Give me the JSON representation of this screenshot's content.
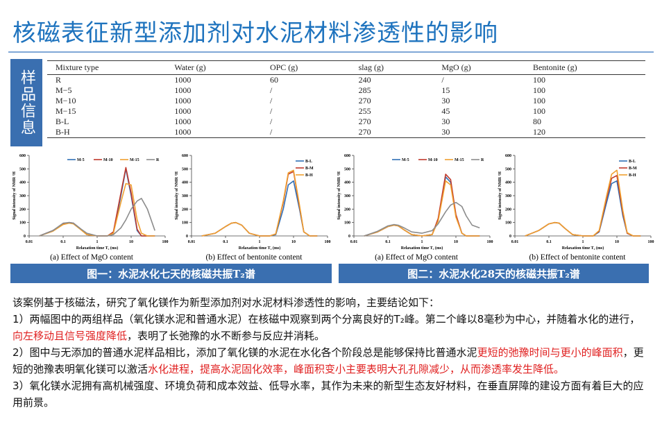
{
  "title": "核磁表征新型添加剂对水泥材料渗透性的影响",
  "side_label": "样品信息",
  "table": {
    "header": [
      "Mixture type",
      "Water (g)",
      "OPC (g)",
      "slag (g)",
      "MgO (g)",
      "Bentonite (g)"
    ],
    "rows": [
      [
        "R",
        "1000",
        "60",
        "240",
        "/",
        "100"
      ],
      [
        "M−5",
        "1000",
        "/",
        "285",
        "15",
        "100"
      ],
      [
        "M−10",
        "1000",
        "/",
        "270",
        "30",
        "100"
      ],
      [
        "M−15",
        "1000",
        "/",
        "255",
        "45",
        "100"
      ],
      [
        "B-L",
        "1000",
        "/",
        "270",
        "30",
        "80"
      ],
      [
        "B-H",
        "1000",
        "/",
        "270",
        "30",
        "120"
      ]
    ]
  },
  "chart_data": [
    {
      "type": "line",
      "caption": "(a) Effect of MgO content",
      "xlabel": "Relaxation time T₂ (ms)",
      "ylabel": "Signal intensity of NMR ¹H",
      "log_x": true,
      "xlim": [
        0.01,
        100
      ],
      "xticks": [
        0.01,
        0.1,
        1,
        10,
        100
      ],
      "ylim": [
        0,
        600
      ],
      "yticks": [
        0,
        100,
        200,
        300,
        400,
        500,
        600
      ],
      "legend": "top",
      "x": [
        0.02,
        0.05,
        0.1,
        0.15,
        0.2,
        0.3,
        0.5,
        1,
        2,
        3,
        5,
        7,
        10,
        15,
        20,
        30,
        50
      ],
      "series": [
        {
          "name": "M-5",
          "color": "#2f6fb5",
          "values": [
            0,
            40,
            90,
            100,
            95,
            60,
            10,
            0,
            0,
            20,
            300,
            500,
            300,
            40,
            0,
            0,
            0
          ]
        },
        {
          "name": "M-10",
          "color": "#c0392b",
          "values": [
            0,
            40,
            90,
            100,
            95,
            60,
            10,
            0,
            0,
            30,
            320,
            510,
            320,
            50,
            0,
            0,
            0
          ]
        },
        {
          "name": "M-15",
          "color": "#f0a030",
          "values": [
            0,
            35,
            85,
            95,
            90,
            55,
            10,
            0,
            0,
            20,
            250,
            390,
            380,
            120,
            20,
            0,
            0
          ]
        },
        {
          "name": "R",
          "color": "#8c8c8c",
          "values": [
            0,
            40,
            95,
            100,
            95,
            60,
            20,
            0,
            0,
            10,
            60,
            120,
            200,
            260,
            280,
            200,
            40
          ]
        }
      ]
    },
    {
      "type": "line",
      "caption": "(b) Effect of bentonite content",
      "xlabel": "Relaxation time T₂ (ms)",
      "ylabel": "Signal intensity of NMR ¹H",
      "log_x": true,
      "xlim": [
        0.01,
        100
      ],
      "xticks": [
        0.01,
        0.1,
        1,
        10,
        100
      ],
      "ylim": [
        0,
        600
      ],
      "yticks": [
        0,
        100,
        200,
        300,
        400,
        500,
        600
      ],
      "legend": "right",
      "x": [
        0.02,
        0.05,
        0.1,
        0.15,
        0.2,
        0.3,
        0.5,
        1,
        2,
        3,
        5,
        7,
        10,
        15,
        20,
        30,
        50
      ],
      "series": [
        {
          "name": "B-L",
          "color": "#2f6fb5",
          "values": [
            0,
            20,
            70,
            95,
            100,
            80,
            20,
            0,
            0,
            10,
            200,
            380,
            410,
            200,
            30,
            0,
            0
          ]
        },
        {
          "name": "B-M",
          "color": "#c0392b",
          "values": [
            0,
            20,
            70,
            95,
            100,
            80,
            20,
            0,
            0,
            15,
            250,
            460,
            480,
            220,
            30,
            0,
            0
          ]
        },
        {
          "name": "B-H",
          "color": "#f0a030",
          "values": [
            0,
            20,
            70,
            95,
            100,
            80,
            20,
            0,
            0,
            15,
            260,
            470,
            490,
            230,
            30,
            0,
            0
          ]
        }
      ]
    },
    {
      "type": "line",
      "caption": "(a) Effect of MgO content",
      "xlabel": "Relaxation time T₂ (ms)",
      "ylabel": "Signal intensity of NMR ¹H",
      "log_x": true,
      "xlim": [
        0.01,
        100
      ],
      "xticks": [
        0.01,
        0.1,
        1,
        10,
        100
      ],
      "ylim": [
        0,
        600
      ],
      "yticks": [
        0,
        100,
        200,
        300,
        400,
        500,
        600
      ],
      "legend": "top",
      "x": [
        0.02,
        0.05,
        0.1,
        0.15,
        0.2,
        0.3,
        0.5,
        1,
        2,
        3,
        5,
        7,
        10,
        15,
        20,
        30,
        50
      ],
      "series": [
        {
          "name": "M-5",
          "color": "#2f6fb5",
          "values": [
            0,
            30,
            70,
            80,
            75,
            45,
            10,
            0,
            10,
            120,
            440,
            400,
            150,
            20,
            0,
            0,
            0
          ]
        },
        {
          "name": "M-10",
          "color": "#c0392b",
          "values": [
            0,
            30,
            70,
            80,
            75,
            45,
            10,
            0,
            10,
            130,
            460,
            420,
            160,
            20,
            0,
            0,
            0
          ]
        },
        {
          "name": "M-15",
          "color": "#f0a030",
          "values": [
            0,
            30,
            70,
            80,
            75,
            45,
            10,
            0,
            10,
            110,
            410,
            380,
            140,
            20,
            0,
            0,
            0
          ]
        },
        {
          "name": "R",
          "color": "#8c8c8c",
          "values": [
            0,
            35,
            75,
            85,
            80,
            60,
            30,
            20,
            40,
            90,
            180,
            230,
            250,
            220,
            150,
            80,
            60
          ]
        }
      ]
    },
    {
      "type": "line",
      "caption": "(b) Effect of bentonite content",
      "xlabel": "Relaxation time T₂ (ms)",
      "ylabel": "Signal intensity of NMR ¹H",
      "log_x": true,
      "xlim": [
        0.01,
        100
      ],
      "xticks": [
        0.01,
        0.1,
        1,
        10,
        100
      ],
      "ylim": [
        0,
        600
      ],
      "yticks": [
        0,
        100,
        200,
        300,
        400,
        500,
        600
      ],
      "legend": "right",
      "x": [
        0.02,
        0.05,
        0.1,
        0.15,
        0.2,
        0.3,
        0.5,
        1,
        2,
        3,
        5,
        7,
        10,
        15,
        20,
        30,
        50
      ],
      "series": [
        {
          "name": "B-L",
          "color": "#2f6fb5",
          "values": [
            0,
            40,
            90,
            100,
            95,
            55,
            10,
            0,
            0,
            30,
            250,
            390,
            410,
            150,
            20,
            0,
            0
          ]
        },
        {
          "name": "B-M",
          "color": "#c0392b",
          "values": [
            0,
            40,
            90,
            100,
            95,
            55,
            10,
            0,
            0,
            35,
            280,
            430,
            450,
            170,
            20,
            0,
            0
          ]
        },
        {
          "name": "B-H",
          "color": "#f0a030",
          "values": [
            0,
            40,
            90,
            100,
            95,
            55,
            10,
            0,
            0,
            40,
            300,
            460,
            490,
            190,
            25,
            0,
            0
          ]
        }
      ]
    }
  ],
  "figure_captions": [
    "图一：水泥水化七天的核磁共振T₂谱",
    "图二：水泥水化28天的核磁共振T₂谱"
  ],
  "paragraphs": [
    [
      {
        "text": "该案例基于核磁法，研究了氧化镁作为新型添加剂对水泥材料渗透性的影响，主要结论如下：",
        "color": "#111111"
      }
    ],
    [
      {
        "text": "1）两幅图中的两组样品（氧化镁水泥和普通水泥）在核磁中观察到两个分离良好的T₂峰。第二个峰以8毫秒为中心，并随着水化的进行，",
        "color": "#111111"
      },
      {
        "text": "向左移动且信号强度降低",
        "color": "#e02020"
      },
      {
        "text": "，表明了长弛豫的水不断参与反应并消耗。",
        "color": "#111111"
      }
    ],
    [
      {
        "text": "2）图中与无添加的普通水泥样品相比，添加了氧化镁的水泥在水化各个阶段总是能够保持比普通水泥",
        "color": "#111111"
      },
      {
        "text": "更短的弛豫时间与更小的峰面积",
        "color": "#e02020"
      },
      {
        "text": "，更短的弛豫表明氧化镁可以激活",
        "color": "#111111"
      },
      {
        "text": "水化进程，提高水泥固化效率，峰面积变小主要表明大孔孔隙减少，从而渗透率发生降低。",
        "color": "#e02020"
      }
    ],
    [
      {
        "text": "3）氧化镁水泥拥有高机械强度、环境负荷和成本效益、低导水率，其作为未来的新型生态友好材料，在垂直屏障的建设方面有着巨大的应用前景。",
        "color": "#111111"
      }
    ]
  ]
}
